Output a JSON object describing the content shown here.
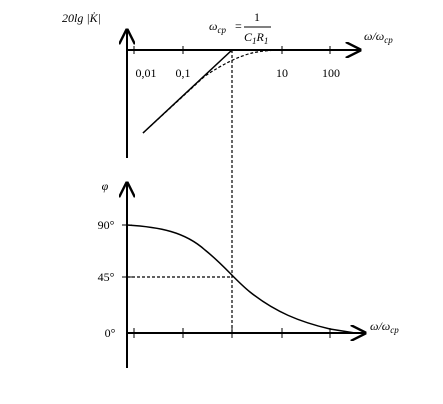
{
  "top_plot": {
    "y_label": "20lg |K̇|",
    "formula": {
      "lhs": "ω",
      "lhs_sub": "ср",
      "eq": "=",
      "numerator": "1",
      "den_c": "C",
      "den_c_sub": "1",
      "den_r": "R",
      "den_r_sub": "1"
    },
    "x_label": {
      "main": "ω/ω",
      "sub": "ср"
    },
    "x_ticks": [
      "0,01",
      "0,1",
      "10",
      "100"
    ]
  },
  "bottom_plot": {
    "y_label": "φ",
    "y_ticks": [
      "90°",
      "45°",
      "0°"
    ],
    "x_label": {
      "main": "ω/ω",
      "sub": "ср"
    }
  }
}
